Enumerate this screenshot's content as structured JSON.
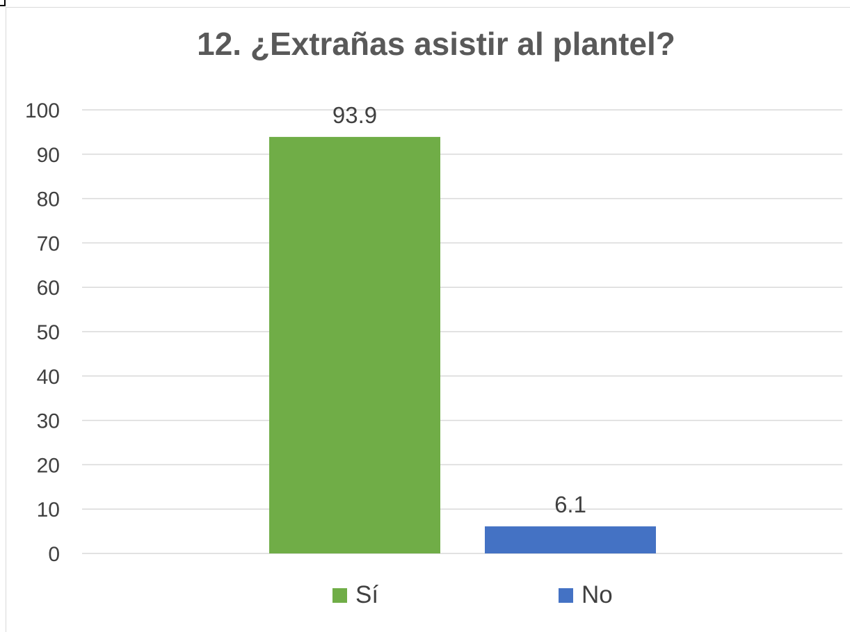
{
  "chart_data": {
    "type": "bar",
    "title": "12. ¿Extrañas asistir al plantel?",
    "categories": [
      "Sí",
      "No"
    ],
    "values": [
      93.9,
      6.1
    ],
    "data_labels": [
      "93.9",
      "6.1"
    ],
    "colors": [
      "#70ad47",
      "#4472c4"
    ],
    "ylim": [
      0,
      100
    ],
    "yticks": [
      "0",
      "10",
      "20",
      "30",
      "40",
      "50",
      "60",
      "70",
      "80",
      "90",
      "100"
    ],
    "grid": true,
    "legend_placement": "bottom",
    "xlabel": "",
    "ylabel": ""
  },
  "legend": {
    "items": [
      {
        "label": "Sí",
        "color": "#70ad47"
      },
      {
        "label": "No",
        "color": "#4472c4"
      }
    ]
  }
}
